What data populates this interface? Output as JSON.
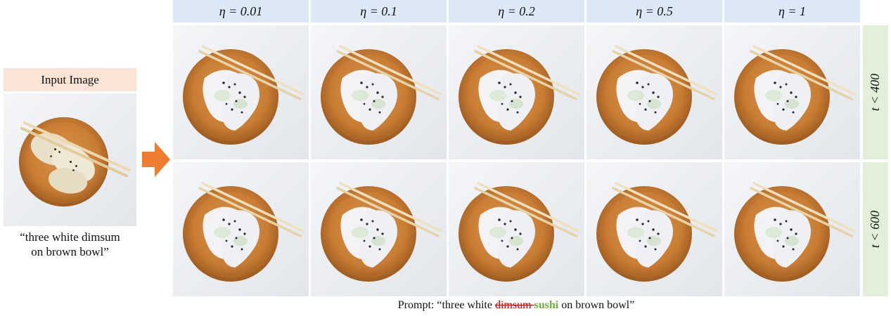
{
  "input": {
    "label": "Input Image",
    "caption_line1": "“three white dimsum",
    "caption_line2": "on brown bowl”"
  },
  "columns": [
    {
      "label": "η = 0.01"
    },
    {
      "label": "η = 0.1"
    },
    {
      "label": "η = 0.2"
    },
    {
      "label": "η = 0.5"
    },
    {
      "label": "η = 1"
    }
  ],
  "rows": [
    {
      "label": "t < 400"
    },
    {
      "label": "t < 600"
    }
  ],
  "prompt": {
    "prefix": "Prompt: “three white ",
    "removed": "dimsum ",
    "added": "sushi",
    "suffix": " on brown bowl”"
  },
  "colors": {
    "input_label_bg": "#fbe3d6",
    "column_header_bg": "#dce8f5",
    "row_label_bg": "#e2efd9",
    "arrow": "#ed7d31",
    "removed_text": "#c00000",
    "added_text": "#70ad47"
  }
}
